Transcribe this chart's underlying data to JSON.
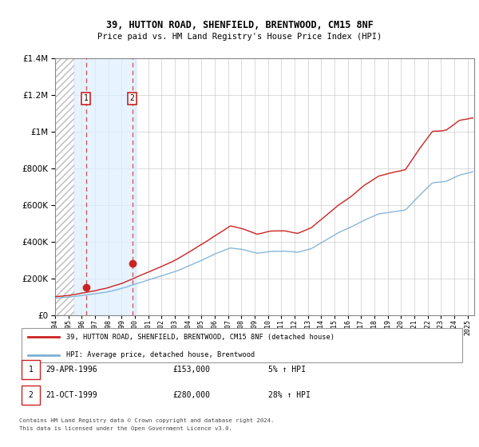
{
  "title": "39, HUTTON ROAD, SHENFIELD, BRENTWOOD, CM15 8NF",
  "subtitle": "Price paid vs. HM Land Registry's House Price Index (HPI)",
  "legend_line1": "39, HUTTON ROAD, SHENFIELD, BRENTWOOD, CM15 8NF (detached house)",
  "legend_line2": "HPI: Average price, detached house, Brentwood",
  "transaction1_date": "29-APR-1996",
  "transaction1_price": 153000,
  "transaction1_year": 1996.32,
  "transaction1_pct": "5%",
  "transaction2_date": "21-OCT-1999",
  "transaction2_price": 280000,
  "transaction2_year": 1999.8,
  "transaction2_pct": "28%",
  "footnote1": "Contains HM Land Registry data © Crown copyright and database right 2024.",
  "footnote2": "This data is licensed under the Open Government Licence v3.0.",
  "hpi_color": "#7bafd4",
  "price_color": "#cc2222",
  "shade_color": "#ddeeff",
  "ylim": [
    0,
    1400000
  ],
  "xlim_start": 1994.0,
  "xlim_end": 2025.5,
  "hatch_end": 1995.42,
  "shade_start": 1995.42,
  "shade_end": 2000.1
}
